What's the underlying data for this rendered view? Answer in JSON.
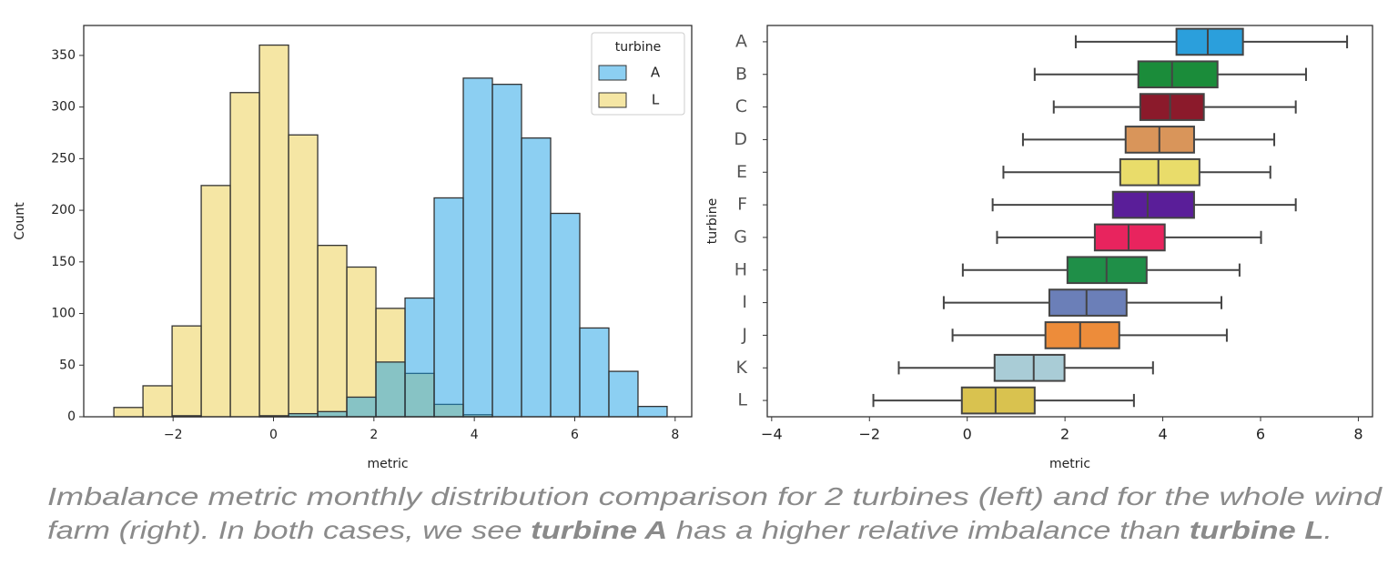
{
  "chart_data": [
    {
      "type": "histogram",
      "xlabel": "metric",
      "ylabel": "Count",
      "bins": [
        -3.18,
        -2.6,
        -2.02,
        -1.44,
        -0.86,
        -0.28,
        0.3,
        0.88,
        1.46,
        2.04,
        2.62,
        3.2,
        3.78,
        4.36,
        4.94,
        5.52,
        6.1,
        6.68,
        7.26,
        7.84
      ],
      "series": [
        {
          "name": "A",
          "color": "#1aa0e6",
          "values": [
            0,
            0,
            1,
            0,
            0,
            1,
            3,
            5,
            19,
            53,
            115,
            212,
            328,
            322,
            270,
            197,
            86,
            44,
            10
          ]
        },
        {
          "name": "L",
          "color": "#ebcd49",
          "values": [
            9,
            30,
            88,
            224,
            314,
            360,
            273,
            166,
            145,
            105,
            42,
            12,
            2,
            0,
            0,
            0,
            0,
            0,
            0
          ]
        }
      ],
      "legend_title": "turbine",
      "legend": "upper right",
      "xlim": [
        -3.78,
        8.33
      ],
      "ylim": [
        0,
        379
      ],
      "xticks": [
        {
          "value": -2,
          "label": "−2"
        },
        0,
        2,
        4,
        6,
        8
      ],
      "yticks": [
        0,
        50,
        100,
        150,
        200,
        250,
        300,
        350
      ]
    },
    {
      "type": "box",
      "xlabel": "metric",
      "ylabel": "turbine",
      "categories": [
        "A",
        "B",
        "C",
        "D",
        "E",
        "F",
        "G",
        "H",
        "I",
        "J",
        "K",
        "L"
      ],
      "boxes": [
        {
          "whislo": 2.22,
          "q1": 4.28,
          "med": 4.92,
          "q3": 5.64,
          "whishi": 7.77,
          "color": "#2b9fdc"
        },
        {
          "whislo": 1.38,
          "q1": 3.5,
          "med": 4.19,
          "q3": 5.12,
          "whishi": 6.93,
          "color": "#1b8c3a"
        },
        {
          "whislo": 1.77,
          "q1": 3.54,
          "med": 4.15,
          "q3": 4.84,
          "whishi": 6.72,
          "color": "#8b1a2b"
        },
        {
          "whislo": 1.14,
          "q1": 3.24,
          "med": 3.93,
          "q3": 4.64,
          "whishi": 6.28,
          "color": "#d9955a"
        },
        {
          "whislo": 0.74,
          "q1": 3.13,
          "med": 3.91,
          "q3": 4.75,
          "whishi": 6.2,
          "color": "#e9dc6a"
        },
        {
          "whislo": 0.52,
          "q1": 2.98,
          "med": 3.69,
          "q3": 4.64,
          "whishi": 6.72,
          "color": "#5a1e99"
        },
        {
          "whislo": 0.61,
          "q1": 2.61,
          "med": 3.3,
          "q3": 4.04,
          "whishi": 6.01,
          "color": "#e8245e"
        },
        {
          "whislo": -0.09,
          "q1": 2.05,
          "med": 2.85,
          "q3": 3.67,
          "whishi": 5.57,
          "color": "#1f8f48"
        },
        {
          "whislo": -0.48,
          "q1": 1.68,
          "med": 2.44,
          "q3": 3.26,
          "whishi": 5.2,
          "color": "#6b7fb8"
        },
        {
          "whislo": -0.3,
          "q1": 1.6,
          "med": 2.31,
          "q3": 3.11,
          "whishi": 5.31,
          "color": "#ed8c3a"
        },
        {
          "whislo": -1.4,
          "q1": 0.56,
          "med": 1.36,
          "q3": 1.99,
          "whishi": 3.8,
          "color": "#a9ccd6"
        },
        {
          "whislo": -1.92,
          "q1": -0.11,
          "med": 0.58,
          "q3": 1.38,
          "whishi": 3.41,
          "color": "#d9c24f"
        }
      ],
      "xlim": [
        -4.09,
        8.29
      ],
      "xticks": [
        {
          "value": -4,
          "label": "−4"
        },
        {
          "value": -2,
          "label": "−2"
        },
        0,
        2,
        4,
        6,
        8
      ]
    }
  ],
  "caption": {
    "lines": [
      [
        {
          "text": "Imbalance metric monthly distribution comparison for 2 turbines (left) and for the whole wind",
          "bold": false
        }
      ],
      [
        {
          "text": "farm (right). In both cases, we see ",
          "bold": false
        },
        {
          "text": "turbine A",
          "bold": true
        },
        {
          "text": " has a higher relative imbalance than ",
          "bold": false
        },
        {
          "text": "turbine L",
          "bold": true
        },
        {
          "text": ".",
          "bold": false
        }
      ]
    ]
  }
}
